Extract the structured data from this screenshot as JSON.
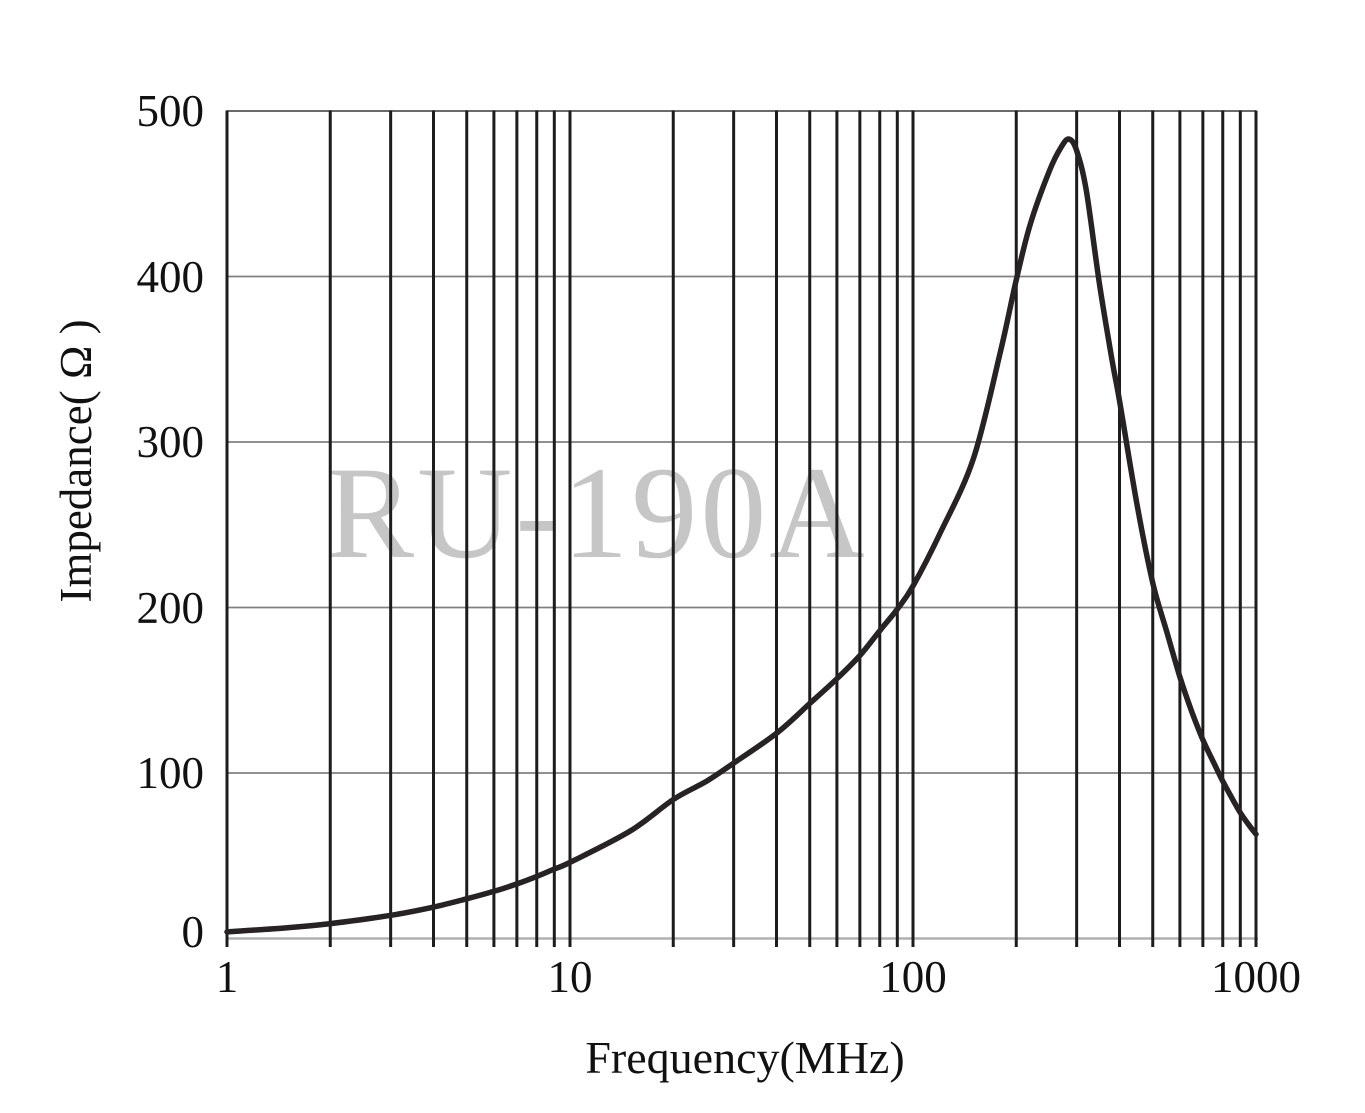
{
  "chart_data": {
    "type": "line",
    "watermark": "RU-190A",
    "xlabel": "Frequency(MHz)",
    "ylabel": "Impedance(  Ω  )",
    "x_scale": "log",
    "xlim": [
      1,
      1000
    ],
    "ylim": [
      0,
      500
    ],
    "x_tick_labels": [
      "1",
      "10",
      "100",
      "1000"
    ],
    "y_tick_labels": [
      "500",
      "400",
      "300",
      "200",
      "100",
      "0"
    ],
    "x_gridlines": [
      1,
      2,
      3,
      4,
      5,
      6,
      7,
      8,
      9,
      10,
      20,
      30,
      40,
      50,
      60,
      70,
      80,
      90,
      100,
      200,
      300,
      400,
      500,
      600,
      700,
      800,
      900,
      1000
    ],
    "y_gridlines": [
      100,
      200,
      300,
      400
    ],
    "grid_on": true,
    "legend": null,
    "series": [
      {
        "name": "RU-190A impedance",
        "points_mhz_ohm": [
          [
            1,
            4
          ],
          [
            1.5,
            6.5
          ],
          [
            2,
            9
          ],
          [
            3,
            14
          ],
          [
            4,
            19
          ],
          [
            5,
            24
          ],
          [
            6,
            28.5
          ],
          [
            7,
            33
          ],
          [
            8,
            37.5
          ],
          [
            9,
            42
          ],
          [
            10,
            46
          ],
          [
            15,
            65
          ],
          [
            20,
            84
          ],
          [
            25,
            95
          ],
          [
            30,
            106
          ],
          [
            40,
            124
          ],
          [
            50,
            142
          ],
          [
            60,
            157
          ],
          [
            70,
            171
          ],
          [
            80,
            186
          ],
          [
            90,
            199
          ],
          [
            100,
            213
          ],
          [
            120,
            245
          ],
          [
            150,
            290
          ],
          [
            180,
            355
          ],
          [
            200,
            398
          ],
          [
            220,
            432
          ],
          [
            250,
            464
          ],
          [
            270,
            478
          ],
          [
            285,
            483
          ],
          [
            300,
            476
          ],
          [
            320,
            452
          ],
          [
            350,
            395
          ],
          [
            380,
            350
          ],
          [
            400,
            325
          ],
          [
            450,
            262
          ],
          [
            500,
            215
          ],
          [
            550,
            185
          ],
          [
            600,
            158
          ],
          [
            650,
            137
          ],
          [
            700,
            120
          ],
          [
            750,
            107
          ],
          [
            800,
            95
          ],
          [
            850,
            85
          ],
          [
            900,
            76
          ],
          [
            950,
            69
          ],
          [
            1000,
            63
          ]
        ]
      }
    ],
    "colors": {
      "curve": "#272223",
      "major_grid_vertical": "#1c1c1c",
      "minor_grid_horizontal": "#808080",
      "top_border": "#555555",
      "bottom_axis": "#b0b0b0",
      "watermark": "#c6c6c6",
      "text": "#111111",
      "background": "#ffffff"
    }
  }
}
